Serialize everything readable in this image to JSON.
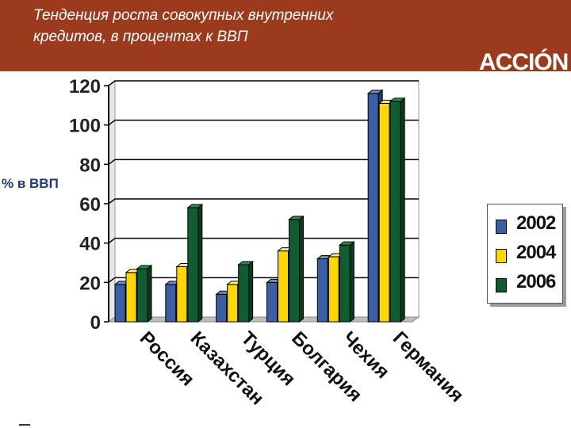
{
  "slide": {
    "title_line1": "Тенденция роста совокупных внутренних",
    "title_line2": "кредитов, в процентах к ВВП",
    "logo": "ACCIÓN",
    "side_label": "% в ВВП"
  },
  "colors": {
    "header_bg": "#9b3a1c",
    "s2002": "#3b5ea6",
    "s2004": "#ffd700",
    "s2006": "#0f5e32"
  },
  "chart_data": {
    "type": "bar",
    "categories": [
      "Россия",
      "Казахстан",
      "Турция",
      "Болгария",
      "Чехия",
      "Германия"
    ],
    "series": [
      {
        "name": "2002",
        "values": [
          19,
          19,
          14,
          20,
          32,
          116
        ]
      },
      {
        "name": "2004",
        "values": [
          25,
          28,
          19,
          36,
          33,
          111
        ]
      },
      {
        "name": "2006",
        "values": [
          27,
          58,
          29,
          52,
          39,
          112
        ]
      }
    ],
    "y_ticks": [
      "0",
      "20",
      "40",
      "60",
      "80",
      "100",
      "120"
    ],
    "ylim": [
      0,
      120
    ],
    "ylabel": "% в ВВП",
    "grid": true,
    "legend_position": "right"
  }
}
